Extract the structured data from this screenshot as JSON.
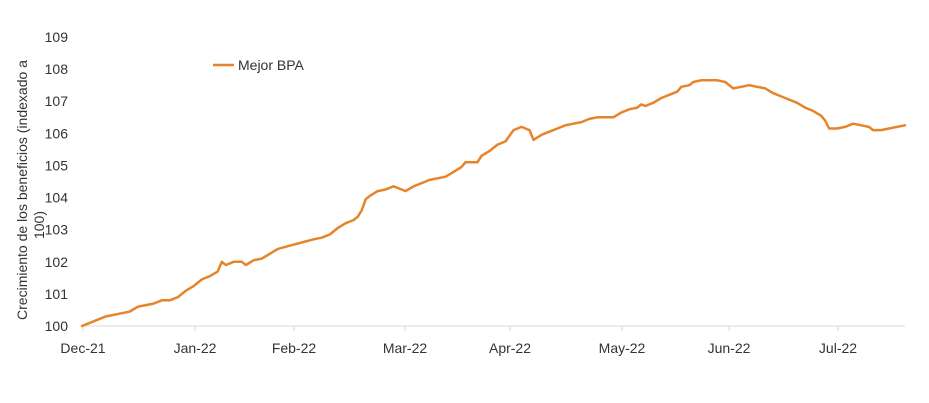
{
  "chart_data": {
    "type": "line",
    "ylabel": "Crecimiento de los beneficios (indexado a 100)",
    "xlabel": "",
    "ylim": [
      100,
      109
    ],
    "yticks": [
      "100",
      "101",
      "102",
      "103",
      "104",
      "105",
      "106",
      "107",
      "108",
      "109"
    ],
    "xticks": [
      "Dec-21",
      "Jan-22",
      "Feb-22",
      "Mar-22",
      "Apr-22",
      "May-22",
      "Jun-22",
      "Jul-22"
    ],
    "grid": false,
    "legend": "top-left",
    "colors": {
      "series": "#E6842A",
      "axis": "#d9d9d9",
      "text": "#333333"
    },
    "series": [
      {
        "name": "Mejor BPA",
        "points": [
          [
            0,
            100.0
          ],
          [
            3,
            100.15
          ],
          [
            6,
            100.3
          ],
          [
            8,
            100.35
          ],
          [
            10,
            100.4
          ],
          [
            12,
            100.45
          ],
          [
            14,
            100.6
          ],
          [
            16,
            100.65
          ],
          [
            18,
            100.7
          ],
          [
            20,
            100.8
          ],
          [
            22,
            100.8
          ],
          [
            24,
            100.9
          ],
          [
            26,
            101.1
          ],
          [
            28,
            101.25
          ],
          [
            30,
            101.45
          ],
          [
            32,
            101.55
          ],
          [
            34,
            101.7
          ],
          [
            35,
            102.0
          ],
          [
            36,
            101.9
          ],
          [
            38,
            102.0
          ],
          [
            40,
            102.0
          ],
          [
            41,
            101.9
          ],
          [
            43,
            102.05
          ],
          [
            45,
            102.1
          ],
          [
            47,
            102.25
          ],
          [
            49,
            102.4
          ],
          [
            52,
            102.5
          ],
          [
            55,
            102.6
          ],
          [
            58,
            102.7
          ],
          [
            60,
            102.75
          ],
          [
            62,
            102.85
          ],
          [
            64,
            103.05
          ],
          [
            66,
            103.2
          ],
          [
            68,
            103.3
          ],
          [
            69,
            103.4
          ],
          [
            70,
            103.6
          ],
          [
            71,
            103.95
          ],
          [
            72,
            104.05
          ],
          [
            74,
            104.2
          ],
          [
            76,
            104.25
          ],
          [
            78,
            104.35
          ],
          [
            80,
            104.25
          ],
          [
            81,
            104.2
          ],
          [
            83,
            104.35
          ],
          [
            85,
            104.45
          ],
          [
            87,
            104.55
          ],
          [
            89,
            104.6
          ],
          [
            91,
            104.65
          ],
          [
            93,
            104.8
          ],
          [
            95,
            104.95
          ],
          [
            96,
            105.1
          ],
          [
            99,
            105.1
          ],
          [
            100,
            105.3
          ],
          [
            102,
            105.45
          ],
          [
            104,
            105.65
          ],
          [
            106,
            105.75
          ],
          [
            108,
            106.1
          ],
          [
            110,
            106.2
          ],
          [
            111,
            106.15
          ],
          [
            112,
            106.1
          ],
          [
            113,
            105.8
          ],
          [
            115,
            105.95
          ],
          [
            117,
            106.05
          ],
          [
            119,
            106.15
          ],
          [
            121,
            106.25
          ],
          [
            123,
            106.3
          ],
          [
            125,
            106.35
          ],
          [
            127,
            106.45
          ],
          [
            129,
            106.5
          ],
          [
            131,
            106.5
          ],
          [
            133,
            106.5
          ],
          [
            135,
            106.65
          ],
          [
            137,
            106.75
          ],
          [
            139,
            106.8
          ],
          [
            140,
            106.9
          ],
          [
            141,
            106.85
          ],
          [
            143,
            106.95
          ],
          [
            145,
            107.1
          ],
          [
            147,
            107.2
          ],
          [
            149,
            107.3
          ],
          [
            150,
            107.45
          ],
          [
            152,
            107.5
          ],
          [
            153,
            107.6
          ],
          [
            155,
            107.65
          ],
          [
            157,
            107.65
          ],
          [
            159,
            107.65
          ],
          [
            161,
            107.6
          ],
          [
            162,
            107.5
          ],
          [
            163,
            107.4
          ],
          [
            165,
            107.45
          ],
          [
            167,
            107.5
          ],
          [
            169,
            107.45
          ],
          [
            171,
            107.4
          ],
          [
            173,
            107.25
          ],
          [
            175,
            107.15
          ],
          [
            177,
            107.05
          ],
          [
            179,
            106.95
          ],
          [
            181,
            106.8
          ],
          [
            183,
            106.7
          ],
          [
            185,
            106.55
          ],
          [
            186,
            106.4
          ],
          [
            187,
            106.15
          ],
          [
            189,
            106.15
          ],
          [
            191,
            106.2
          ],
          [
            193,
            106.3
          ],
          [
            195,
            106.25
          ],
          [
            197,
            106.2
          ],
          [
            198,
            106.1
          ],
          [
            200,
            106.1
          ],
          [
            202,
            106.15
          ],
          [
            204,
            106.2
          ],
          [
            206,
            106.25
          ]
        ]
      }
    ]
  }
}
